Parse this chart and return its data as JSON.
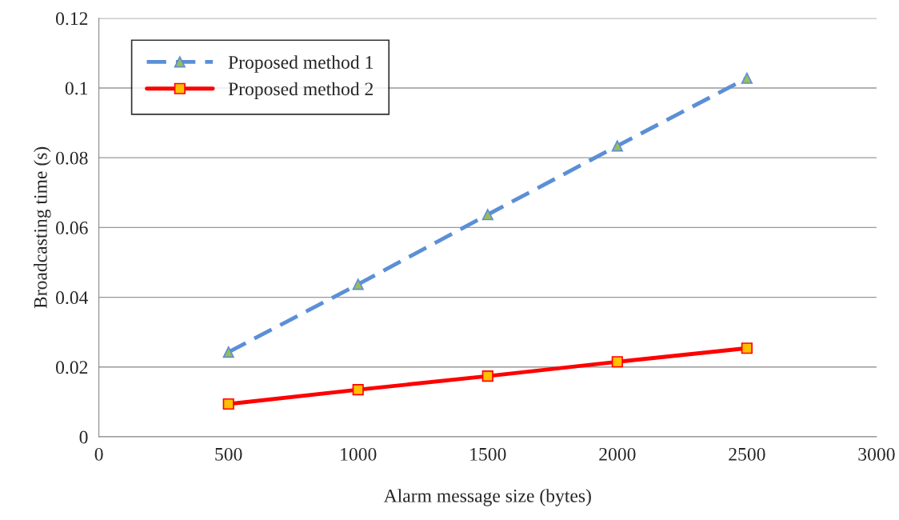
{
  "chart_data": {
    "type": "line",
    "xlabel": "Alarm message size (bytes)",
    "ylabel": "Broadcasting time (s)",
    "x": [
      500,
      1000,
      1500,
      2000,
      2500
    ],
    "series": [
      {
        "name": "Proposed method 1",
        "color": "#5b8fd6",
        "values": [
          0.0243,
          0.0437,
          0.0637,
          0.0834,
          0.1028
        ],
        "marker": "triangle",
        "line_style": "dashed"
      },
      {
        "name": "Proposed method 2",
        "color": "#ff0000",
        "values": [
          0.0094,
          0.0135,
          0.0174,
          0.0215,
          0.0254
        ],
        "marker": "square",
        "line_style": "solid"
      }
    ],
    "xlim": [
      0,
      3000
    ],
    "xticks": [
      0,
      500,
      1000,
      1500,
      2000,
      2500,
      3000
    ],
    "ylim": [
      0,
      0.12
    ],
    "yticks": [
      {
        "value": 0,
        "label": "0"
      },
      {
        "value": 0.02,
        "label": "0.02"
      },
      {
        "value": 0.04,
        "label": "0.04"
      },
      {
        "value": 0.06,
        "label": "0.06"
      },
      {
        "value": 0.08,
        "label": "0.08"
      },
      {
        "value": 0.1,
        "label": "0.1"
      },
      {
        "value": 0.12,
        "label": "0.12"
      }
    ],
    "grid": "y",
    "legend": "top left"
  }
}
